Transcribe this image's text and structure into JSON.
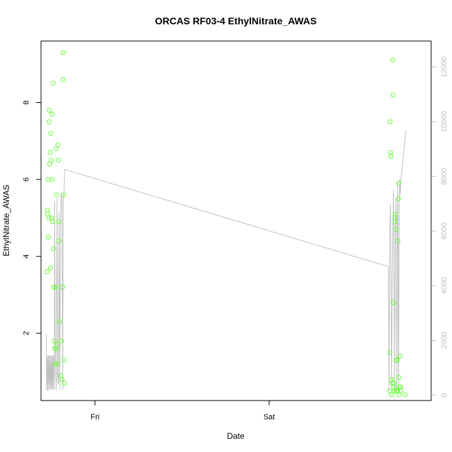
{
  "chart_data": {
    "type": "scatter",
    "title": "ORCAS RF03-4 EthylNitrate_AWAS",
    "xlabel": "Date",
    "ylabel": "EthylNitrate_AWAS",
    "x_ticks": [
      {
        "label": "Fri",
        "value": 0
      },
      {
        "label": "Sat",
        "value": 1
      }
    ],
    "x_range": [
      -0.31,
      1.93
    ],
    "ylim": [
      0.25,
      9.6
    ],
    "y_ticks": [
      2,
      4,
      6,
      8
    ],
    "y2_range": [
      -200,
      12950
    ],
    "y2_ticks": [
      0,
      2000,
      4000,
      6000,
      8000,
      10000,
      12000
    ],
    "grid": false,
    "series": [
      {
        "kind": "points",
        "color": "#66ff33",
        "points": [
          {
            "x": -0.276,
            "y": 3.6
          },
          {
            "x": -0.274,
            "y": 5.2
          },
          {
            "x": -0.272,
            "y": 5.1
          },
          {
            "x": -0.27,
            "y": 6.0
          },
          {
            "x": -0.268,
            "y": 4.5
          },
          {
            "x": -0.266,
            "y": 5.0
          },
          {
            "x": -0.264,
            "y": 7.5
          },
          {
            "x": -0.262,
            "y": 7.8
          },
          {
            "x": -0.26,
            "y": 6.4
          },
          {
            "x": -0.258,
            "y": 6.7
          },
          {
            "x": -0.256,
            "y": 3.7
          },
          {
            "x": -0.254,
            "y": 7.2
          },
          {
            "x": -0.252,
            "y": 6.5
          },
          {
            "x": -0.25,
            "y": 5.0
          },
          {
            "x": -0.248,
            "y": 7.7
          },
          {
            "x": -0.246,
            "y": 6.0
          },
          {
            "x": -0.244,
            "y": 4.9
          },
          {
            "x": -0.24,
            "y": 8.5
          },
          {
            "x": -0.238,
            "y": 4.2
          },
          {
            "x": -0.236,
            "y": 3.2
          },
          {
            "x": -0.234,
            "y": 1.8
          },
          {
            "x": -0.232,
            "y": 1.6
          },
          {
            "x": -0.23,
            "y": 1.2
          },
          {
            "x": -0.226,
            "y": 3.2
          },
          {
            "x": -0.224,
            "y": 6.8
          },
          {
            "x": -0.222,
            "y": 5.6
          },
          {
            "x": -0.22,
            "y": 1.6
          },
          {
            "x": -0.218,
            "y": 1.7
          },
          {
            "x": -0.216,
            "y": 1.2
          },
          {
            "x": -0.212,
            "y": 6.9
          },
          {
            "x": -0.21,
            "y": 6.5
          },
          {
            "x": -0.208,
            "y": 4.9
          },
          {
            "x": -0.206,
            "y": 4.4
          },
          {
            "x": -0.204,
            "y": 2.3
          },
          {
            "x": -0.196,
            "y": 0.9
          },
          {
            "x": -0.192,
            "y": 1.8
          },
          {
            "x": -0.19,
            "y": 0.8
          },
          {
            "x": -0.186,
            "y": 3.2
          },
          {
            "x": -0.184,
            "y": 8.6
          },
          {
            "x": -0.182,
            "y": 9.3
          },
          {
            "x": -0.18,
            "y": 5.6
          },
          {
            "x": -0.178,
            "y": 1.3
          },
          {
            "x": -0.176,
            "y": 0.7
          },
          {
            "x": 1.691,
            "y": 0.5
          },
          {
            "x": 1.693,
            "y": 1.5
          },
          {
            "x": 1.695,
            "y": 7.5
          },
          {
            "x": 1.697,
            "y": 6.7
          },
          {
            "x": 1.699,
            "y": 6.6
          },
          {
            "x": 1.701,
            "y": 0.8
          },
          {
            "x": 1.703,
            "y": 0.4
          },
          {
            "x": 1.707,
            "y": 0.7
          },
          {
            "x": 1.709,
            "y": 9.1
          },
          {
            "x": 1.711,
            "y": 8.2
          },
          {
            "x": 1.713,
            "y": 2.8
          },
          {
            "x": 1.715,
            "y": 0.6
          },
          {
            "x": 1.717,
            "y": 0.7
          },
          {
            "x": 1.719,
            "y": 0.5
          },
          {
            "x": 1.721,
            "y": 5.0
          },
          {
            "x": 1.723,
            "y": 4.9
          },
          {
            "x": 1.725,
            "y": 5.1
          },
          {
            "x": 1.727,
            "y": 4.7
          },
          {
            "x": 1.729,
            "y": 1.3
          },
          {
            "x": 1.731,
            "y": 0.5
          },
          {
            "x": 1.733,
            "y": 0.5
          },
          {
            "x": 1.735,
            "y": 1.3
          },
          {
            "x": 1.737,
            "y": 0.5
          },
          {
            "x": 1.739,
            "y": 4.4
          },
          {
            "x": 1.741,
            "y": 5.5
          },
          {
            "x": 1.743,
            "y": 5.9
          },
          {
            "x": 1.745,
            "y": 0.85
          },
          {
            "x": 1.747,
            "y": 0.4
          },
          {
            "x": 1.749,
            "y": 0.6
          },
          {
            "x": 1.751,
            "y": 1.4
          },
          {
            "x": 1.753,
            "y": 0.6
          },
          {
            "x": 1.755,
            "y": 0.5
          },
          {
            "x": 1.781,
            "y": 0.4
          }
        ]
      },
      {
        "kind": "line",
        "axis": "right",
        "color": "#c0c0c0",
        "points": [
          {
            "x": -0.28,
            "y": 2250
          },
          {
            "x": -0.278,
            "y": 180
          },
          {
            "x": -0.274,
            "y": 1450
          },
          {
            "x": -0.272,
            "y": 150
          },
          {
            "x": -0.268,
            "y": 1450
          },
          {
            "x": -0.265,
            "y": 180
          },
          {
            "x": -0.262,
            "y": 1450
          },
          {
            "x": -0.259,
            "y": 220
          },
          {
            "x": -0.256,
            "y": 1450
          },
          {
            "x": -0.253,
            "y": 220
          },
          {
            "x": -0.25,
            "y": 1450
          },
          {
            "x": -0.247,
            "y": 200
          },
          {
            "x": -0.244,
            "y": 1450
          },
          {
            "x": -0.241,
            "y": 200
          },
          {
            "x": -0.238,
            "y": 1450
          },
          {
            "x": -0.234,
            "y": 200
          },
          {
            "x": -0.232,
            "y": 7100
          },
          {
            "x": -0.228,
            "y": 1200
          },
          {
            "x": -0.222,
            "y": 200
          },
          {
            "x": -0.218,
            "y": 7200
          },
          {
            "x": -0.214,
            "y": 600
          },
          {
            "x": -0.21,
            "y": 400
          },
          {
            "x": -0.206,
            "y": 6700
          },
          {
            "x": -0.202,
            "y": 200
          },
          {
            "x": -0.198,
            "y": 5900
          },
          {
            "x": -0.194,
            "y": 7400
          },
          {
            "x": -0.19,
            "y": 7200
          },
          {
            "x": -0.186,
            "y": 200
          },
          {
            "x": -0.182,
            "y": 7100
          },
          {
            "x": -0.178,
            "y": 7500
          },
          {
            "x": -0.174,
            "y": 8250
          },
          {
            "x": 1.685,
            "y": 4700
          },
          {
            "x": 1.688,
            "y": 150
          },
          {
            "x": 1.693,
            "y": 6000
          },
          {
            "x": 1.697,
            "y": 7000
          },
          {
            "x": 1.7,
            "y": 4000
          },
          {
            "x": 1.703,
            "y": 200
          },
          {
            "x": 1.707,
            "y": 4400
          },
          {
            "x": 1.71,
            "y": 6000
          },
          {
            "x": 1.713,
            "y": 7500
          },
          {
            "x": 1.717,
            "y": 3700
          },
          {
            "x": 1.72,
            "y": 200
          },
          {
            "x": 1.723,
            "y": 5900
          },
          {
            "x": 1.727,
            "y": 7200
          },
          {
            "x": 1.73,
            "y": 4000
          },
          {
            "x": 1.733,
            "y": 200
          },
          {
            "x": 1.737,
            "y": 7800
          },
          {
            "x": 1.74,
            "y": 6000
          },
          {
            "x": 1.743,
            "y": 200
          },
          {
            "x": 1.747,
            "y": 7000
          },
          {
            "x": 1.75,
            "y": 7900
          },
          {
            "x": 1.753,
            "y": 7300
          },
          {
            "x": 1.756,
            "y": 7800
          },
          {
            "x": 1.77,
            "y": 8700
          },
          {
            "x": 1.785,
            "y": 9700
          }
        ]
      }
    ]
  }
}
